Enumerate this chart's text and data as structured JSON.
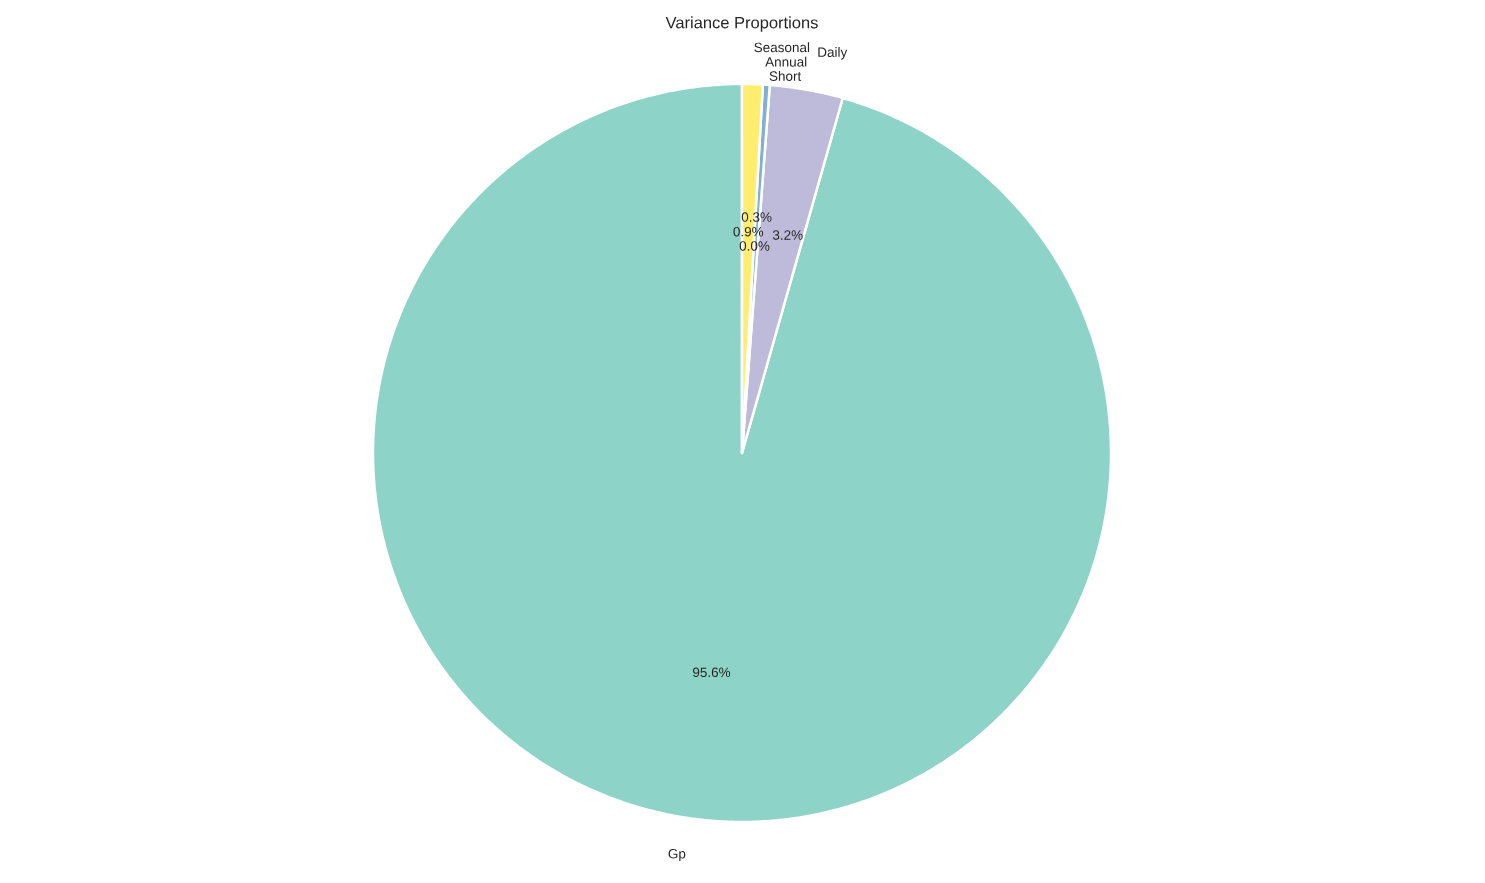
{
  "chart_data": {
    "type": "pie",
    "title": "Variance Proportions",
    "categories": [
      "Gp",
      "Daily",
      "Short",
      "Annual",
      "Seasonal"
    ],
    "values": [
      95.6,
      3.2,
      0.3,
      0.0,
      0.9
    ],
    "colors": [
      "#8dd3c7",
      "#bebada",
      "#80b1d3",
      "#fccde5",
      "#ffed6f"
    ],
    "value_labels": [
      "95.6%",
      "3.2%",
      "0.3%",
      "0.0%",
      "0.9%"
    ]
  }
}
